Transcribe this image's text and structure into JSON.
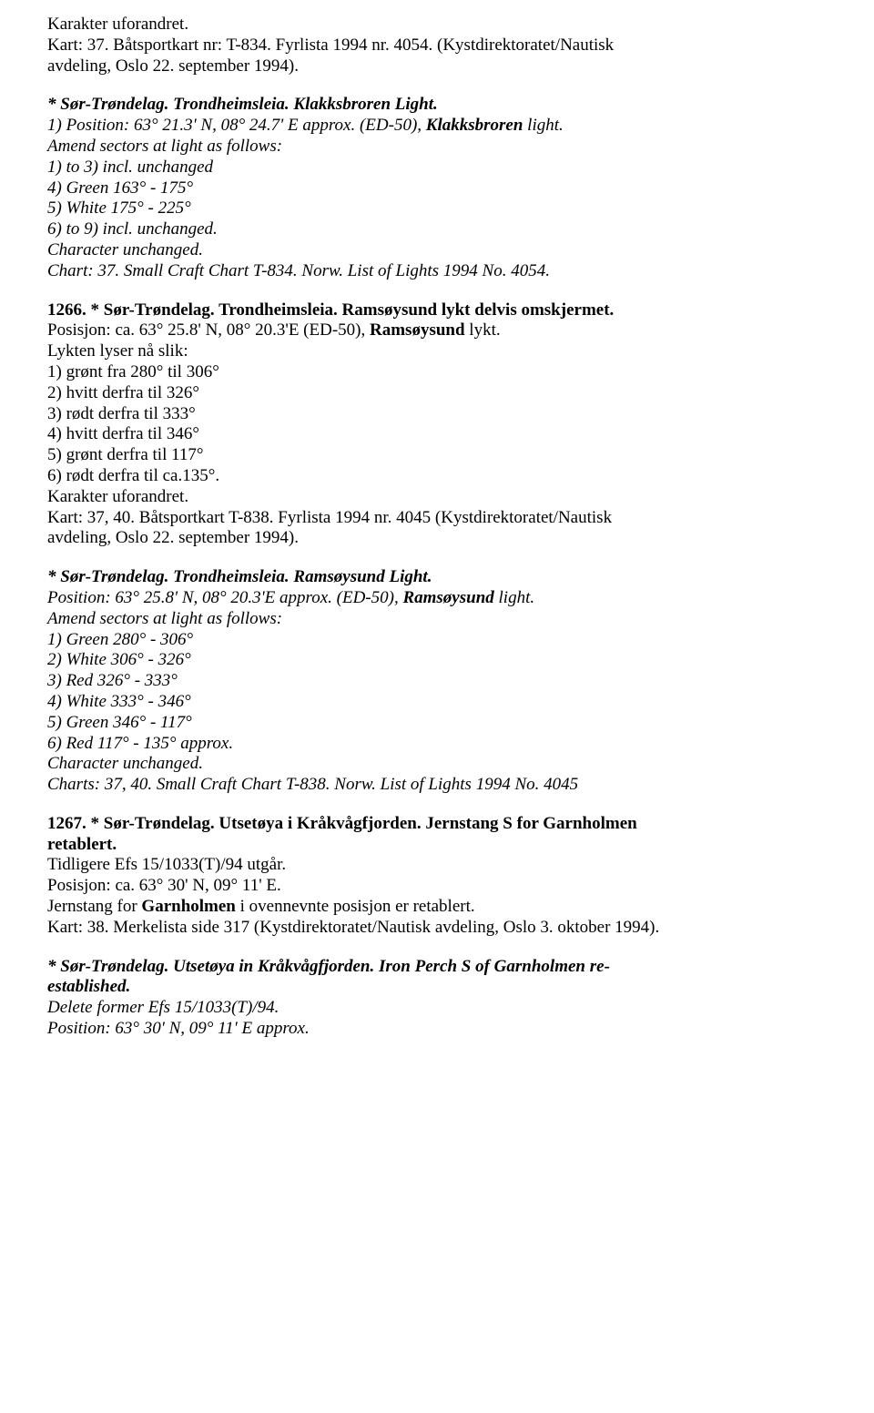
{
  "p1": {
    "l1": "Karakter uforandret.",
    "l2a": "Kart: 37. Båtsportkart nr: T-834. Fyrlista 1994 nr. 4054. (Kystdirektoratet/Nautisk",
    "l2b": "avdeling, Oslo 22. september 1994)."
  },
  "p2": {
    "h1a": "* Sør-Trøndelag. Trondheimsleia. Klakksbroren Light.",
    "l1a": "1) Position: 63° 21.3' N, 08° 24.7' E approx. (ED-50), ",
    "l1b": "Klakksbroren",
    "l1c": " light.",
    "l2": "Amend sectors at light as follows:",
    "l3": "1) to 3) incl. unchanged",
    "l4": "4) Green 163° - 175°",
    "l5": "5) White 175° - 225°",
    "l6": "6) to 9) incl. unchanged.",
    "l7": "Character unchanged.",
    "l8": "Chart: 37. Small Craft Chart T-834. Norw. List of Lights 1994 No. 4054."
  },
  "p3": {
    "h": "1266. * Sør-Trøndelag. Trondheimsleia. Ramsøysund lykt delvis omskjermet.",
    "l1a": "Posisjon: ca. 63° 25.8' N, 08° 20.3'E (ED-50), ",
    "l1b": "Ramsøysund",
    "l1c": " lykt.",
    "l2": "Lykten lyser nå slik:",
    "l3": "1) grønt fra 280° til 306°",
    "l4": "2) hvitt derfra til 326°",
    "l5": "3) rødt derfra til 333°",
    "l6": "4) hvitt derfra til 346°",
    "l7": "5) grønt derfra til 117°",
    "l8": "6) rødt derfra til ca.135°.",
    "l9": "Karakter uforandret.",
    "l10a": "Kart: 37, 40. Båtsportkart T-838. Fyrlista 1994 nr. 4045 (Kystdirektoratet/Nautisk",
    "l10b": "avdeling, Oslo 22. september 1994)."
  },
  "p4": {
    "h": "* Sør-Trøndelag. Trondheimsleia. Ramsøysund Light.",
    "l1a": "Position: 63° 25.8' N, 08° 20.3'E approx. (ED-50), ",
    "l1b": "Ramsøysund",
    "l1c": " light.",
    "l2": "Amend sectors at light as follows:",
    "l3": "1) Green 280° - 306°",
    "l4": "2) White 306° - 326°",
    "l5": "3) Red 326° - 333°",
    "l6": "4) White 333° - 346°",
    "l7": "5) Green 346° - 117°",
    "l8": "6) Red 117° - 135° approx.",
    "l9": "Character unchanged.",
    "l10": "Charts: 37, 40. Small Craft Chart T-838. Norw. List of Lights 1994 No. 4045"
  },
  "p5": {
    "h1": "1267. * Sør-Trøndelag. Utsetøya i Kråkvågfjorden. Jernstang S for Garnholmen",
    "h2": "retablert.",
    "l1": "Tidligere Efs 15/1033(T)/94 utgår.",
    "l2": "Posisjon: ca. 63° 30' N, 09° 11' E.",
    "l3a": "Jernstang for ",
    "l3b": "Garnholmen",
    "l3c": " i ovennevnte posisjon er retablert.",
    "l4": "Kart: 38. Merkelista side 317 (Kystdirektoratet/Nautisk avdeling, Oslo 3. oktober 1994)."
  },
  "p6": {
    "h1": "* Sør-Trøndelag. Utsetøya in Kråkvågfjorden. Iron Perch S of Garnholmen re-",
    "h2": "established.",
    "l1": "Delete former Efs 15/1033(T)/94.",
    "l2": "Position: 63° 30' N, 09° 11' E approx."
  }
}
